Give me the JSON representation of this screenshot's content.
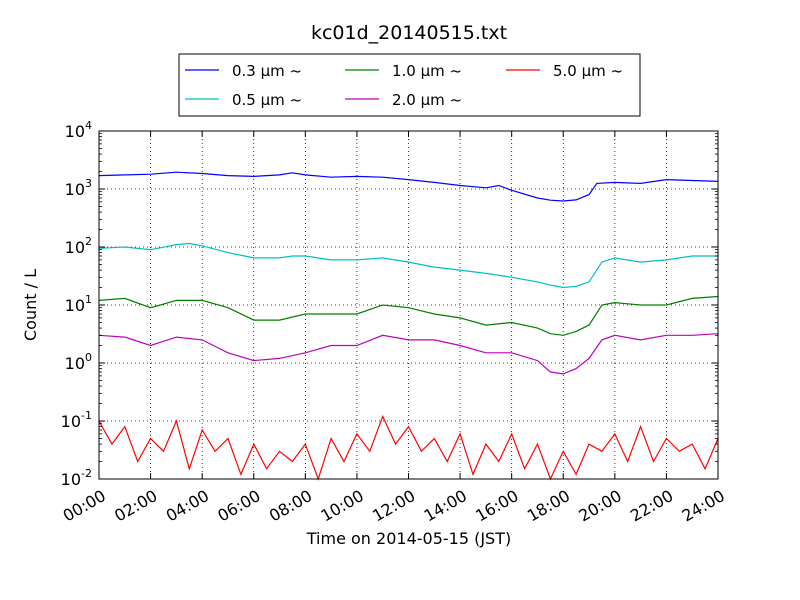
{
  "chart_data": {
    "type": "line",
    "title": "kc01d_20140515.txt",
    "xlabel": "Time on 2014-05-15 (JST)",
    "ylabel": "Count / L",
    "y_scale": "log",
    "ylim_exp": [
      -2,
      4
    ],
    "y_ticks": [
      {
        "base": "10",
        "exp": "-2"
      },
      {
        "base": "10",
        "exp": "-1"
      },
      {
        "base": "10",
        "exp": "0"
      },
      {
        "base": "10",
        "exp": "1"
      },
      {
        "base": "10",
        "exp": "2"
      },
      {
        "base": "10",
        "exp": "3"
      },
      {
        "base": "10",
        "exp": "4"
      }
    ],
    "x_range_hours": [
      0,
      24
    ],
    "x_ticks": [
      "00:00",
      "02:00",
      "04:00",
      "06:00",
      "08:00",
      "10:00",
      "12:00",
      "14:00",
      "16:00",
      "18:00",
      "20:00",
      "22:00",
      "24:00"
    ],
    "grid": true,
    "legend_position": "top-center, above plot",
    "series": [
      {
        "name": "0.3 μm ~",
        "color": "#0000ff",
        "hours": [
          0,
          1,
          2,
          3,
          4,
          5,
          6,
          7,
          7.5,
          8,
          9,
          10,
          11,
          12,
          13,
          14,
          15,
          15.5,
          16,
          17,
          17.5,
          18,
          18.5,
          19,
          19.3,
          20,
          21,
          22,
          23,
          24
        ],
        "values": [
          1700,
          1750,
          1800,
          1950,
          1850,
          1700,
          1650,
          1750,
          1900,
          1750,
          1600,
          1650,
          1600,
          1450,
          1300,
          1150,
          1050,
          1150,
          950,
          700,
          640,
          620,
          650,
          800,
          1250,
          1300,
          1250,
          1450,
          1400,
          1350
        ]
      },
      {
        "name": "0.5 μm ~",
        "color": "#00bfbf",
        "hours": [
          0,
          1,
          2,
          3,
          3.5,
          4,
          5,
          6,
          7,
          7.5,
          8,
          9,
          10,
          11,
          12,
          13,
          14,
          15,
          16,
          17,
          17.5,
          18,
          18.5,
          19,
          19.5,
          20,
          21,
          22,
          23,
          24
        ],
        "values": [
          95,
          100,
          90,
          110,
          115,
          105,
          80,
          65,
          65,
          70,
          70,
          60,
          60,
          65,
          55,
          45,
          40,
          35,
          30,
          25,
          22,
          20,
          21,
          25,
          55,
          65,
          55,
          60,
          70,
          70
        ]
      },
      {
        "name": "1.0 μm ~",
        "color": "#008000",
        "hours": [
          0,
          1,
          2,
          3,
          4,
          5,
          6,
          7,
          8,
          9,
          10,
          11,
          12,
          13,
          14,
          15,
          16,
          17,
          17.5,
          18,
          18.5,
          19,
          19.5,
          20,
          21,
          22,
          23,
          24
        ],
        "values": [
          12,
          13,
          9,
          12,
          12,
          9,
          5.5,
          5.5,
          7,
          7,
          7,
          10,
          9,
          7,
          6,
          4.5,
          5,
          4,
          3.2,
          3,
          3.5,
          4.5,
          10,
          11,
          10,
          10,
          13,
          14
        ]
      },
      {
        "name": "2.0 μm ~",
        "color": "#bf00bf",
        "hours": [
          0,
          1,
          2,
          3,
          4,
          5,
          6,
          7,
          8,
          9,
          10,
          11,
          12,
          13,
          14,
          15,
          16,
          17,
          17.5,
          18,
          18.5,
          19,
          19.5,
          20,
          21,
          22,
          23,
          24
        ],
        "values": [
          3,
          2.8,
          2,
          2.8,
          2.5,
          1.5,
          1.1,
          1.2,
          1.5,
          2,
          2,
          3,
          2.5,
          2.5,
          2,
          1.5,
          1.5,
          1.1,
          0.7,
          0.65,
          0.8,
          1.2,
          2.5,
          3,
          2.5,
          3,
          3,
          3.2
        ]
      },
      {
        "name": "5.0 μm ~",
        "color": "#ff0000",
        "hours": [
          0,
          0.5,
          1,
          1.5,
          2,
          2.5,
          3,
          3.5,
          4,
          4.5,
          5,
          5.5,
          6,
          6.5,
          7,
          7.5,
          8,
          8.5,
          9,
          9.5,
          10,
          10.5,
          11,
          11.5,
          12,
          12.5,
          13,
          13.5,
          14,
          14.5,
          15,
          15.5,
          16,
          16.5,
          17,
          17.5,
          18,
          18.5,
          19,
          19.5,
          20,
          20.5,
          21,
          21.5,
          22,
          22.5,
          23,
          23.5,
          24
        ],
        "values": [
          0.1,
          0.04,
          0.08,
          0.02,
          0.05,
          0.03,
          0.1,
          0.015,
          0.07,
          0.03,
          0.05,
          0.012,
          0.04,
          0.015,
          0.03,
          0.02,
          0.04,
          0.01,
          0.05,
          0.02,
          0.06,
          0.03,
          0.12,
          0.04,
          0.08,
          0.03,
          0.05,
          0.02,
          0.06,
          0.012,
          0.04,
          0.02,
          0.06,
          0.015,
          0.04,
          0.01,
          0.03,
          0.012,
          0.04,
          0.03,
          0.06,
          0.02,
          0.08,
          0.02,
          0.05,
          0.03,
          0.04,
          0.015,
          0.05
        ]
      }
    ]
  }
}
